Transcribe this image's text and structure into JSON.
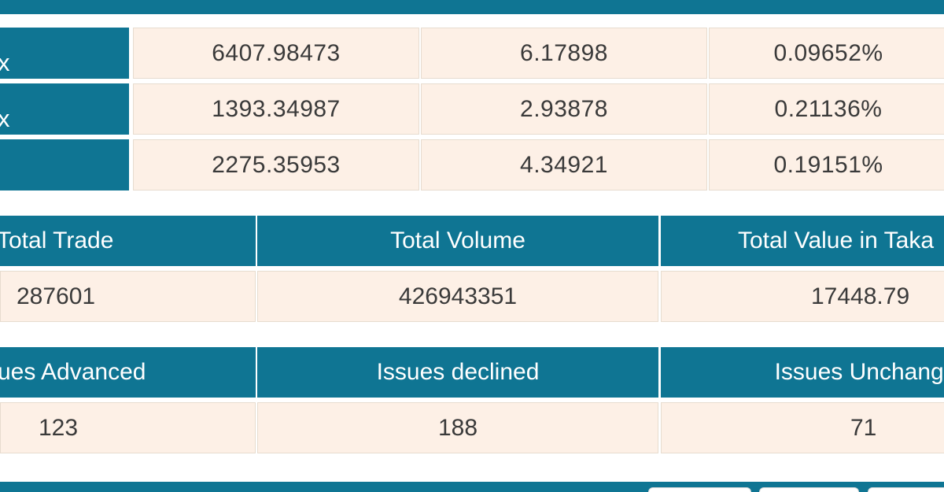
{
  "colors": {
    "header_bg": "#0f7593",
    "cell_bg": "#fdf0e6",
    "header_text": "#ffffff",
    "cell_text": "#3a3a3a"
  },
  "index_rows": [
    {
      "name": "x",
      "value": "6407.98473",
      "change": "6.17898",
      "percent": "0.09652%"
    },
    {
      "name": "x",
      "value": "1393.34987",
      "change": "2.93878",
      "percent": "0.21136%"
    },
    {
      "name": "",
      "value": "2275.35953",
      "change": "4.34921",
      "percent": "0.19151%"
    }
  ],
  "trade_summary": {
    "headers": [
      "Total Trade",
      "Total Volume",
      "Total Value in Taka"
    ],
    "values": [
      "287601",
      "426943351",
      "17448.79"
    ]
  },
  "issues_summary": {
    "headers": [
      "ues Advanced",
      "Issues declined",
      "Issues Unchange"
    ],
    "values": [
      "123",
      "188",
      "71"
    ]
  }
}
